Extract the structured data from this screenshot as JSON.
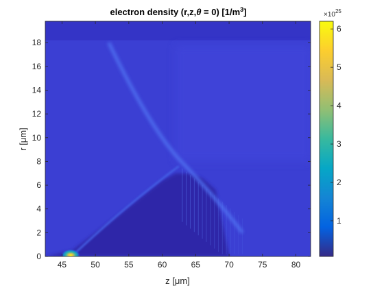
{
  "chart_data": {
    "type": "heatmap",
    "title_prefix": "electron density (r,z,",
    "title_theta": "θ",
    "title_mid": " = 0) [1/m",
    "title_sup": "3",
    "title_suffix": "]",
    "xlabel_prefix": "z [",
    "xlabel_mu": "μ",
    "xlabel_suffix": "m]",
    "ylabel_prefix": "r [",
    "ylabel_mu": "μ",
    "ylabel_suffix": "m]",
    "xlim": [
      42.5,
      82.2
    ],
    "ylim": [
      0,
      19.8
    ],
    "x_ticks": [
      45,
      50,
      55,
      60,
      65,
      70,
      75,
      80
    ],
    "y_ticks": [
      0,
      2,
      4,
      6,
      8,
      10,
      12,
      14,
      16,
      18
    ],
    "colorbar": {
      "colormap": "parula",
      "clim": [
        0.07,
        6.2
      ],
      "ticks": [
        1,
        2,
        3,
        4,
        5,
        6
      ],
      "exponent_base": "×10",
      "exponent_power": "25"
    },
    "features": {
      "background_level": 0.6,
      "hot_spot": {
        "z": 46.3,
        "r": 0.1,
        "value": 6.1
      },
      "cavity_boundary": [
        [
          42.5,
          0.0
        ],
        [
          46.5,
          0.5
        ],
        [
          50,
          2.0
        ],
        [
          55,
          4.2
        ],
        [
          60,
          6.4
        ],
        [
          62,
          7.0
        ],
        [
          64,
          7.0
        ],
        [
          66,
          6.6
        ],
        [
          68,
          5.6
        ]
      ],
      "dark_top_band_r": [
        18.2,
        19.8
      ]
    },
    "grid": false,
    "legend": "none"
  }
}
